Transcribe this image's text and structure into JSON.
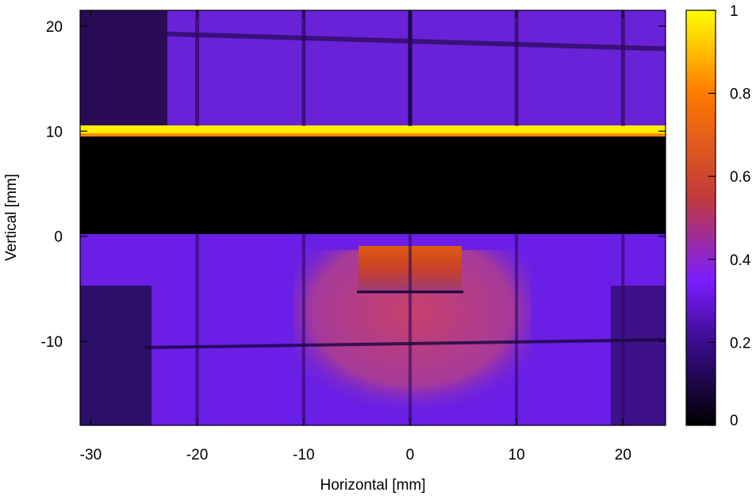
{
  "chart_data": {
    "type": "heatmap",
    "xlabel": "Horizontal [mm]",
    "ylabel": "Vertical [mm]",
    "xlim": [
      -31,
      24
    ],
    "ylim": [
      -18,
      21.5
    ],
    "x_ticks": [
      -30,
      -20,
      -10,
      0,
      10,
      20
    ],
    "y_ticks": [
      -10,
      0,
      10,
      20
    ],
    "colorbar": {
      "range": [
        0,
        1
      ],
      "ticks": [
        0,
        0.2,
        0.4,
        0.6,
        0.8,
        1
      ],
      "colormap": [
        "#000000",
        "#3a0c8c",
        "#7c1dff",
        "#c03a3a",
        "#ff7a00",
        "#ffff00"
      ]
    },
    "regions": [
      {
        "name": "upper-panel",
        "x": [
          -31,
          24
        ],
        "y": [
          10.5,
          21.5
        ],
        "value": 0.22
      },
      {
        "name": "dark-band",
        "x": [
          -31,
          24
        ],
        "y": [
          0.3,
          9.5
        ],
        "value": 0.0
      },
      {
        "name": "bright-line",
        "x": [
          -31,
          24
        ],
        "y": [
          9.9,
          10.5
        ],
        "value": 1.0
      },
      {
        "name": "lower-panel",
        "x": [
          -31,
          24
        ],
        "y": [
          -18,
          0.3
        ],
        "value": 0.28
      },
      {
        "name": "hot-block",
        "x": [
          -5,
          5
        ],
        "y": [
          -5.3,
          -1
        ],
        "value": 0.55
      },
      {
        "name": "warm-zone",
        "x": [
          -10,
          10
        ],
        "y": [
          -18,
          -2
        ],
        "value": 0.42
      }
    ],
    "grid_lines_x": [
      -20,
      -10,
      0,
      10,
      20
    ],
    "grid_lines_y_upper": [
      19.5
    ],
    "grid_lines_y_lower": [
      -10.3
    ]
  }
}
